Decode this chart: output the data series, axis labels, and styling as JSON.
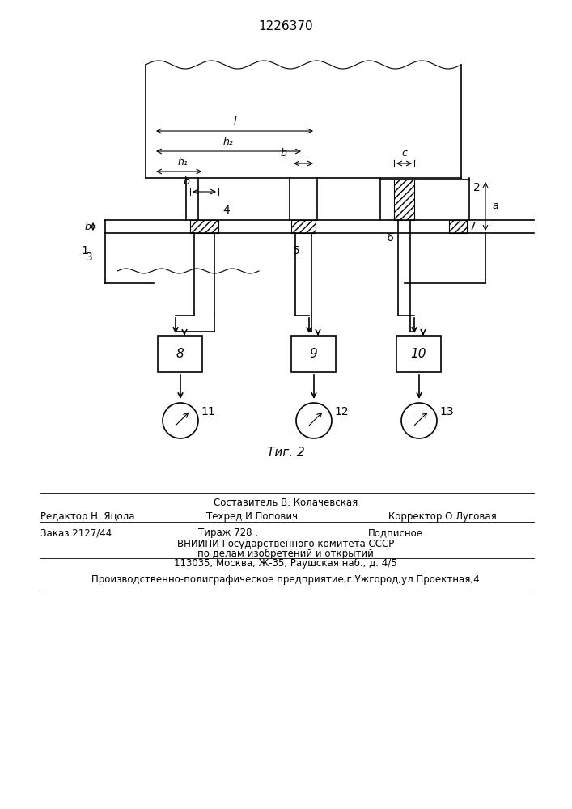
{
  "title": "1226370",
  "fig_label": "Τиг. 2",
  "bg_color": "#ffffff",
  "line_color": "#000000",
  "hatch_color": "#000000",
  "footer_lines": [
    "Составитель В. Колачевская",
    "Редактор Н. Яцола   Техред И.Попович             Корректор О.Луговая",
    "Заказ 2127/44      Тираж 728 .           Подписное",
    "ВНИИПИ Государственного комитета СССР",
    "по делам изобретений и открытий",
    "113035, Москва, Ж-35, Раушская наб., д. 4/5",
    "Производственно-полиграфическое предприятие,г.Ужгород,ул.Проектная,4"
  ]
}
